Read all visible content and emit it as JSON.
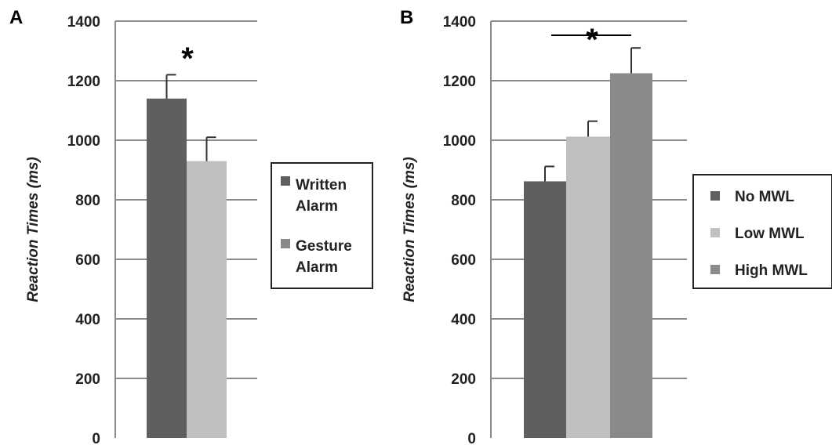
{
  "chart_data": [
    {
      "type": "bar",
      "panel_label": "A",
      "ylabel": "Reaction Times (ms)",
      "xlabel": "",
      "ylim": [
        0,
        1400
      ],
      "yticks": [
        "0",
        "200",
        "400",
        "600",
        "800",
        "1000",
        "1200",
        "1400"
      ],
      "grid": true,
      "legend_position": "right",
      "significance": "*",
      "series": [
        {
          "name_lines": [
            "Written",
            "Alarm"
          ],
          "value": 1140,
          "error": 80,
          "color": "#5f5f5f",
          "legend_color": "#5f5f5f"
        },
        {
          "name_lines": [
            "Gesture",
            "Alarm"
          ],
          "value": 930,
          "error": 80,
          "color": "#bfbfbf",
          "legend_color": "#8a8a8a"
        }
      ]
    },
    {
      "type": "bar",
      "panel_label": "B",
      "ylabel": "Reaction Times (ms)",
      "xlabel": "",
      "ylim": [
        0,
        1400
      ],
      "yticks": [
        "0",
        "200",
        "400",
        "600",
        "800",
        "1000",
        "1200",
        "1400"
      ],
      "grid": true,
      "legend_position": "right",
      "significance": "*",
      "series": [
        {
          "name": "No MWL",
          "value": 862,
          "error": 50,
          "color": "#5f5f5f"
        },
        {
          "name": "Low MWL",
          "value": 1012,
          "error": 52,
          "color": "#bfbfbf"
        },
        {
          "name": "High MWL",
          "value": 1225,
          "error": 85,
          "color": "#8a8a8a"
        }
      ]
    }
  ]
}
